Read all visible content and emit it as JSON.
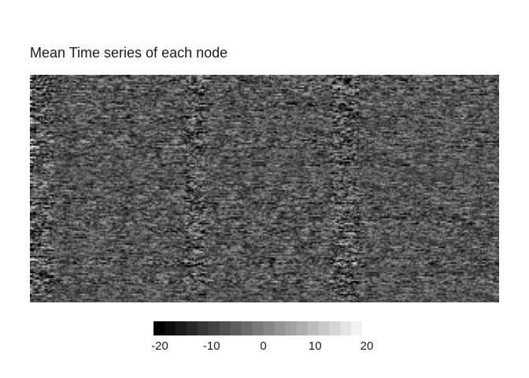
{
  "chart_data": {
    "type": "heatmap",
    "title": "Mean Time series of each node",
    "xlabel": "",
    "ylabel": "",
    "color_scale": {
      "min": -20,
      "max": 20,
      "low_color": "#000000",
      "high_color": "#ffffff",
      "ticks": [
        -20,
        -10,
        0,
        10,
        20
      ],
      "tick_labels": [
        "-20",
        "-10",
        "0",
        "10",
        "20"
      ]
    },
    "grid": false,
    "legend": "bottom"
  }
}
